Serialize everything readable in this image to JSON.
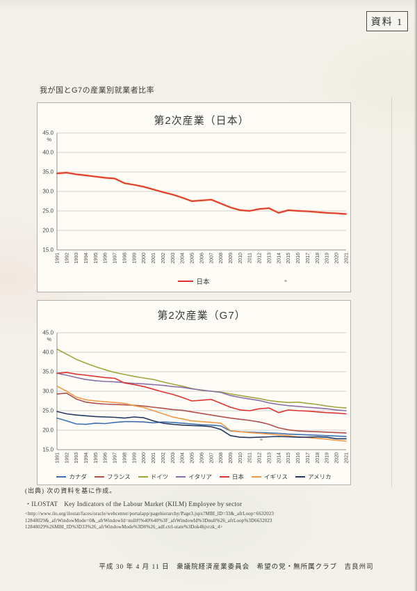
{
  "page": {
    "tag_label": "資料 1",
    "header_title": "我が国とG7の産業別就業者比率",
    "footer": "平成 30 年 4 月 11 日　衆議院経済産業委員会　希望の党・無所属クラブ　吉良州司"
  },
  "source": {
    "caption": "(出典) 次の資料を基に作成。",
    "reference": "・ILOSTAT　Key Indicators of the Labour Market (KILM) Employee by sector",
    "url_lines": [
      "<http://www.ilo.org/ilostat/faces/oracle/webcenter/portalapp/pagehierarchy/Page3.jspx?MBI_ID=33&_afrLoop=6632023",
      "12848029&_afrWindowMode=0&_afrWindowId=null#!%40%40%3F_afrWindowId%3Dnull%26_afrLoop%3D6632023",
      "12848029%26MBI_ID%3D33%26_afrWindowMode%3D0%26_adf.ctrl-state%3Dok4hjvrzk_4>"
    ]
  },
  "chart_data": [
    {
      "type": "line",
      "title": "第2次産業（日本）",
      "unit_label": "%",
      "ylim": [
        15,
        45
      ],
      "ytick_step": 5,
      "grid": true,
      "legend_position": "bottom",
      "x": [
        1991,
        1992,
        1993,
        1994,
        1995,
        1996,
        1997,
        1998,
        1999,
        2000,
        2001,
        2002,
        2003,
        2004,
        2005,
        2006,
        2007,
        2008,
        2009,
        2010,
        2011,
        2012,
        2013,
        2014,
        2015,
        2016,
        2017,
        2018,
        2019,
        2020,
        2021
      ],
      "series": [
        {
          "key": "japan",
          "name": "日本",
          "color": "#e03430",
          "values": [
            34.6,
            34.8,
            34.4,
            34.1,
            33.8,
            33.5,
            33.3,
            32.1,
            31.7,
            31.2,
            30.5,
            29.8,
            29.2,
            28.4,
            27.5,
            27.7,
            27.9,
            26.9,
            25.9,
            25.2,
            25.0,
            25.5,
            25.7,
            24.5,
            25.2,
            25.0,
            24.9,
            24.7,
            24.5,
            24.4,
            24.2
          ]
        }
      ]
    },
    {
      "type": "line",
      "title": "第2次産業（G7）",
      "unit_label": "%",
      "ylim": [
        15,
        45
      ],
      "ytick_step": 5,
      "grid": true,
      "legend_position": "bottom",
      "x": [
        1991,
        1992,
        1993,
        1994,
        1995,
        1996,
        1997,
        1998,
        1999,
        2000,
        2001,
        2002,
        2003,
        2004,
        2005,
        2006,
        2007,
        2008,
        2009,
        2010,
        2011,
        2012,
        2013,
        2014,
        2015,
        2016,
        2017,
        2018,
        2019,
        2020,
        2021
      ],
      "series": [
        {
          "key": "canada",
          "name": "カナダ",
          "color": "#3e6fae",
          "values": [
            23.1,
            22.4,
            21.6,
            21.5,
            21.8,
            21.7,
            22.0,
            22.2,
            22.2,
            22.1,
            21.9,
            22.1,
            22.0,
            21.8,
            21.6,
            21.4,
            21.3,
            21.1,
            19.8,
            19.6,
            19.5,
            19.4,
            19.3,
            19.2,
            19.0,
            18.9,
            18.8,
            18.7,
            18.6,
            18.5,
            18.4
          ]
        },
        {
          "key": "france",
          "name": "フランス",
          "color": "#b0504a",
          "values": [
            29.3,
            29.5,
            28.0,
            27.2,
            26.9,
            26.7,
            26.6,
            26.5,
            26.4,
            26.2,
            25.9,
            25.6,
            25.3,
            25.1,
            24.7,
            24.3,
            23.9,
            23.5,
            23.1,
            22.8,
            22.5,
            22.1,
            21.5,
            20.6,
            20.1,
            19.8,
            19.7,
            19.6,
            19.5,
            19.4,
            19.3
          ]
        },
        {
          "key": "germany",
          "name": "ドイツ",
          "color": "#a3a43c",
          "values": [
            40.8,
            39.5,
            38.2,
            37.2,
            36.3,
            35.5,
            34.8,
            34.3,
            33.8,
            33.4,
            33.0,
            32.4,
            31.8,
            31.3,
            30.7,
            30.2,
            30.0,
            29.8,
            29.3,
            28.9,
            28.5,
            28.1,
            27.6,
            27.3,
            27.1,
            27.2,
            26.9,
            26.6,
            26.2,
            25.9,
            25.7
          ]
        },
        {
          "key": "italy",
          "name": "イタリア",
          "color": "#8a6fa6",
          "values": [
            34.6,
            34.1,
            33.5,
            33.0,
            32.7,
            32.5,
            32.4,
            32.2,
            32.0,
            31.9,
            31.7,
            31.5,
            31.2,
            31.0,
            30.6,
            30.3,
            30.0,
            29.7,
            28.9,
            28.4,
            28.0,
            27.6,
            27.0,
            26.6,
            26.3,
            26.1,
            25.9,
            25.7,
            25.5,
            25.2,
            25.0
          ]
        },
        {
          "key": "japan",
          "name": "日本",
          "color": "#e03430",
          "values": [
            34.6,
            34.8,
            34.4,
            34.1,
            33.8,
            33.5,
            33.3,
            32.1,
            31.7,
            31.2,
            30.5,
            29.8,
            29.2,
            28.4,
            27.5,
            27.7,
            27.9,
            26.9,
            25.9,
            25.2,
            25.0,
            25.5,
            25.7,
            24.5,
            25.2,
            25.0,
            24.9,
            24.7,
            24.5,
            24.4,
            24.2
          ]
        },
        {
          "key": "uk",
          "name": "イギリス",
          "color": "#ee9b4a",
          "values": [
            31.3,
            30.0,
            28.5,
            27.8,
            27.5,
            27.3,
            27.1,
            26.9,
            26.3,
            25.8,
            25.0,
            24.2,
            23.4,
            22.9,
            22.4,
            22.2,
            22.0,
            21.8,
            19.9,
            19.6,
            19.4,
            19.2,
            19.0,
            18.8,
            18.6,
            18.3,
            18.1,
            17.9,
            17.7,
            17.4,
            17.2
          ]
        },
        {
          "key": "usa",
          "name": "アメリカ",
          "color": "#253860",
          "values": [
            24.8,
            24.2,
            23.9,
            23.7,
            23.5,
            23.4,
            23.3,
            23.1,
            23.4,
            23.2,
            22.4,
            21.8,
            21.5,
            21.3,
            21.2,
            21.1,
            20.9,
            20.2,
            18.6,
            18.2,
            18.1,
            18.2,
            18.3,
            18.4,
            18.3,
            18.2,
            18.2,
            18.3,
            18.2,
            17.8,
            17.8
          ]
        }
      ]
    }
  ]
}
